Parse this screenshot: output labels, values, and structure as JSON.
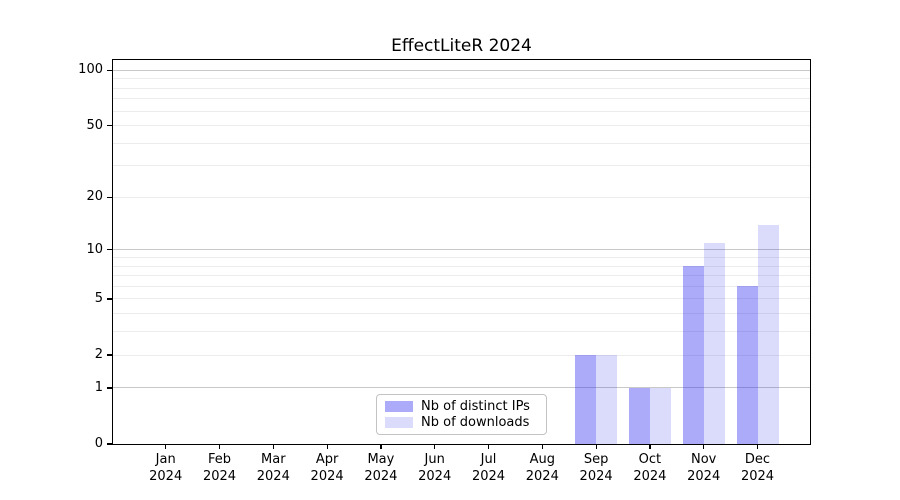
{
  "chart_data": {
    "type": "bar",
    "title": "EffectLiteR 2024",
    "categories": [
      {
        "month": "Jan",
        "year": "2024"
      },
      {
        "month": "Feb",
        "year": "2024"
      },
      {
        "month": "Mar",
        "year": "2024"
      },
      {
        "month": "Apr",
        "year": "2024"
      },
      {
        "month": "May",
        "year": "2024"
      },
      {
        "month": "Jun",
        "year": "2024"
      },
      {
        "month": "Jul",
        "year": "2024"
      },
      {
        "month": "Aug",
        "year": "2024"
      },
      {
        "month": "Sep",
        "year": "2024"
      },
      {
        "month": "Oct",
        "year": "2024"
      },
      {
        "month": "Nov",
        "year": "2024"
      },
      {
        "month": "Dec",
        "year": "2024"
      }
    ],
    "series": [
      {
        "key": "distinct-ips",
        "name": "Nb of distinct IPs",
        "color": "rgba(34,34,238,0.38)",
        "values": [
          0,
          0,
          0,
          0,
          0,
          0,
          0,
          0,
          2,
          1,
          8,
          6
        ]
      },
      {
        "key": "downloads",
        "name": "Nb of downloads",
        "color": "rgba(34,34,238,0.16)",
        "values": [
          0,
          0,
          0,
          0,
          0,
          0,
          0,
          0,
          2,
          1,
          11,
          14
        ]
      }
    ],
    "y_axis": {
      "scale": "log1p",
      "min": 0,
      "max": 113.5,
      "tick_values": [
        0,
        1,
        2,
        5,
        10,
        20,
        50,
        100
      ],
      "tick_labels": [
        "0",
        "1",
        "2",
        "5",
        "10",
        "20",
        "50",
        "100"
      ],
      "major_gridlines": [
        1,
        10,
        100
      ],
      "minor_gridlines": [
        2,
        3,
        4,
        5,
        6,
        7,
        8,
        9,
        20,
        30,
        40,
        50,
        60,
        70,
        80,
        90
      ]
    },
    "legend": {
      "position": "lower-center-inside"
    },
    "colors": {
      "grid_major": "#c8c8c8",
      "grid_minor": "#ececec",
      "spine": "#000000",
      "text": "#000000",
      "background": "#ffffff"
    }
  }
}
